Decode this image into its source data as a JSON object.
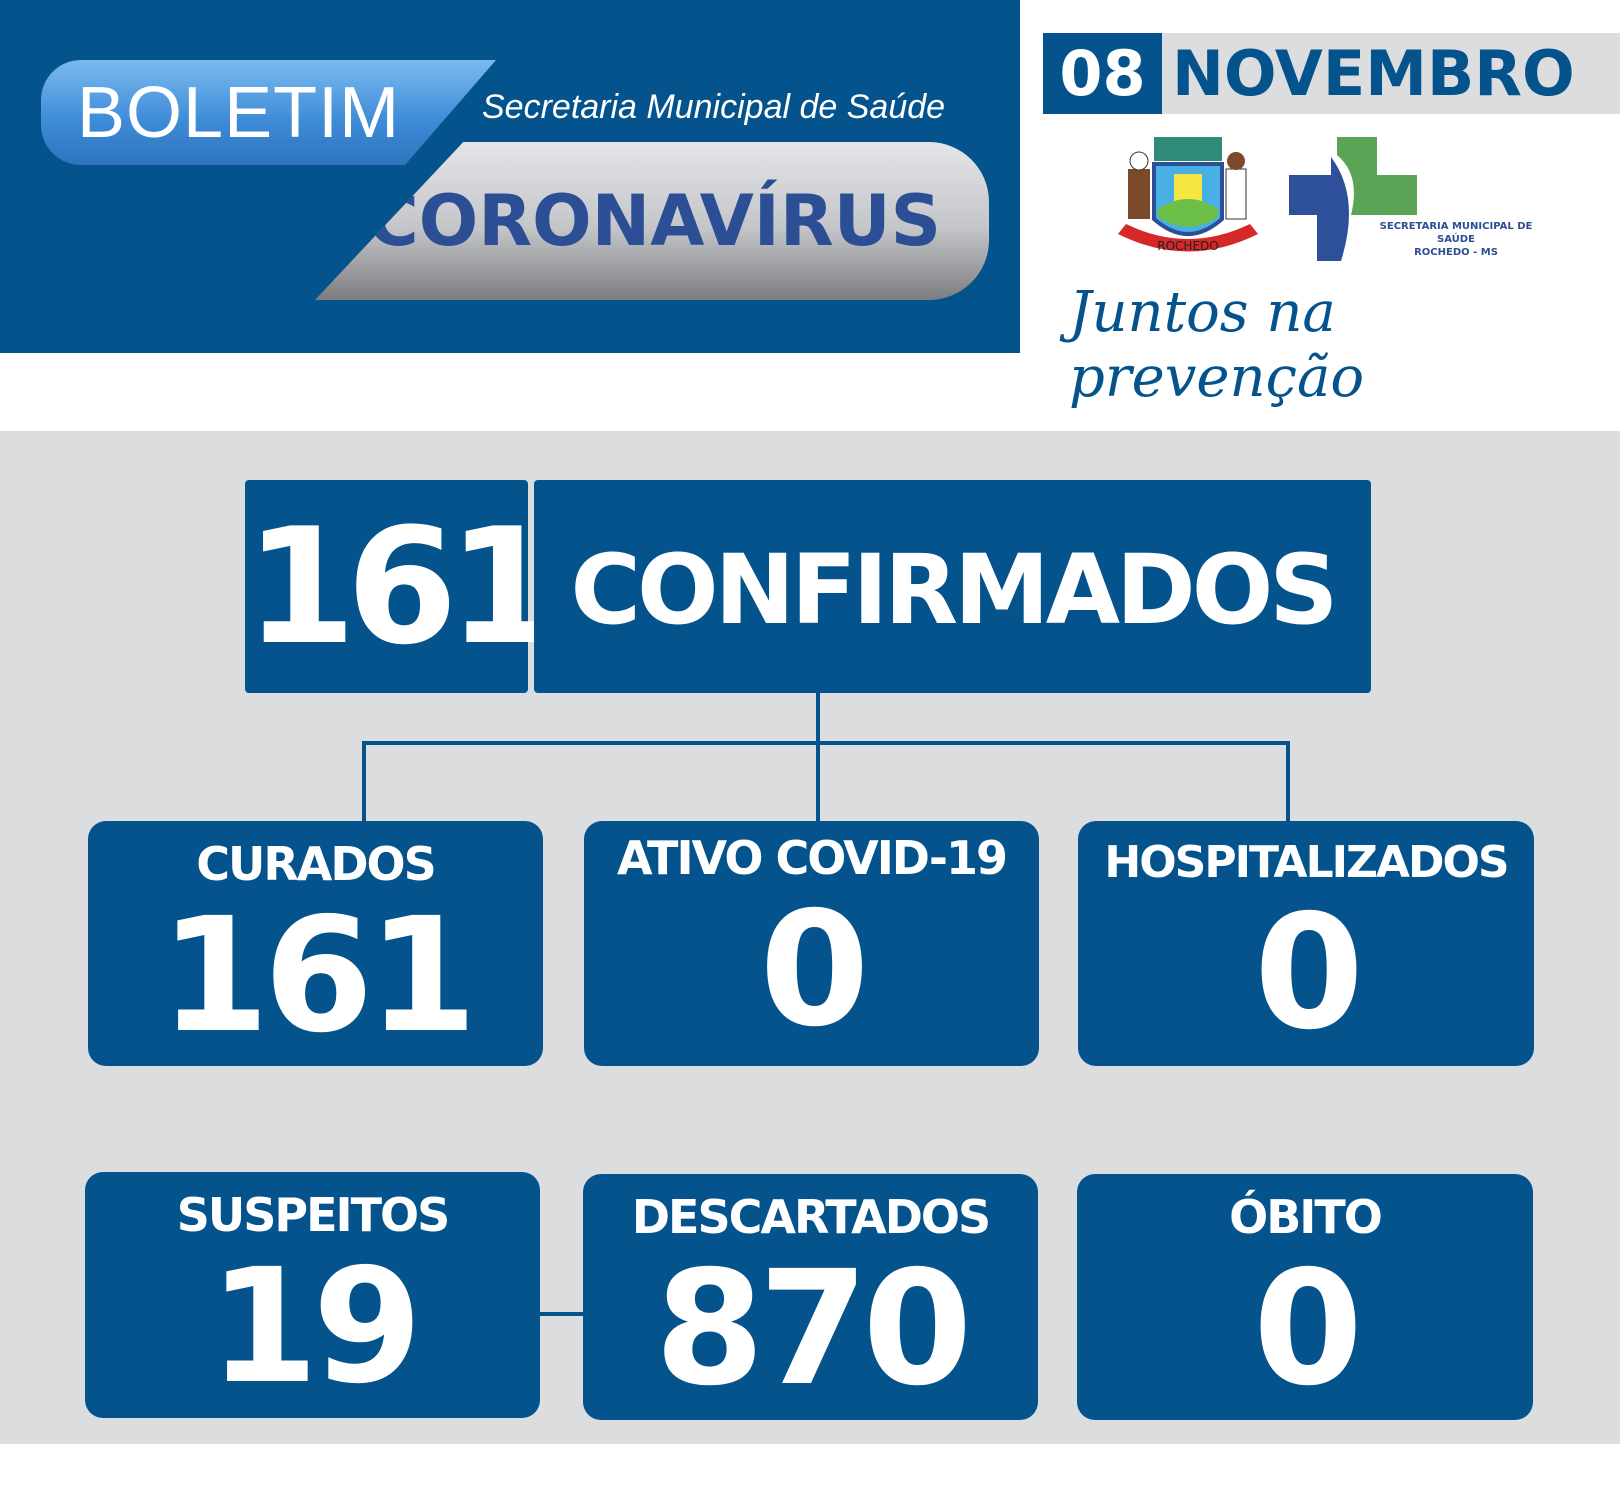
{
  "header": {
    "boletim": "BOLETIM",
    "secretaria": "Secretaria Municipal de Saúde",
    "title": "CORONAVÍRUS"
  },
  "date": {
    "day": "08",
    "month": "NOVEMBRO"
  },
  "logos": {
    "coat_of_arms_text": "ROCHEDO",
    "health_logo_line1": "SECRETARIA MUNICIPAL DE SAÚDE",
    "health_logo_line2": "ROCHEDO - MS"
  },
  "slogan": "Juntos na prevenção",
  "confirmed": {
    "value": "161",
    "label": "CONFIRMADOS"
  },
  "stats": [
    {
      "label": "CURADOS",
      "value": "161"
    },
    {
      "label": "ATIVO COVID-19",
      "value": "0"
    },
    {
      "label": "HOSPITALIZADOS",
      "value": "0"
    },
    {
      "label": "SUSPEITOS",
      "value": "19"
    },
    {
      "label": "DESCARTADOS",
      "value": "870"
    },
    {
      "label": "ÓBITO",
      "value": "0"
    }
  ],
  "colors": {
    "primary": "#05538c",
    "background": "#dcdddf",
    "green": "#5ca455",
    "navy": "#2b4e94"
  }
}
